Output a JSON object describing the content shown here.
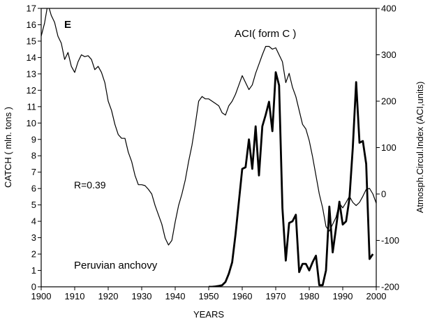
{
  "chart_data": {
    "type": "line",
    "panel_label": "E",
    "xlabel": "YEARS",
    "ylabel_left": "CATCH ( mln. tons )",
    "ylabel_right": "Atmosph.Circul.Index (ACI,units)",
    "xlim": [
      1900,
      2000
    ],
    "ylim_left": [
      0,
      17
    ],
    "ylim_right": [
      -200,
      400
    ],
    "x_ticks": [
      1900,
      1910,
      1920,
      1930,
      1940,
      1950,
      1960,
      1970,
      1980,
      1990,
      2000
    ],
    "y_left_ticks": [
      0,
      1,
      2,
      3,
      4,
      5,
      6,
      7,
      8,
      9,
      10,
      11,
      12,
      13,
      14,
      15,
      16,
      17
    ],
    "y_right_ticks": [
      -200,
      -100,
      0,
      100,
      200,
      300,
      400
    ],
    "grid": false,
    "series": [
      {
        "name": "ACI( form C )",
        "axis": "right",
        "color": "#000000",
        "line_weight": "thin",
        "points": [
          [
            1900,
            340
          ],
          [
            1901,
            368
          ],
          [
            1902,
            410
          ],
          [
            1903,
            385
          ],
          [
            1904,
            370
          ],
          [
            1905,
            340
          ],
          [
            1906,
            325
          ],
          [
            1907,
            290
          ],
          [
            1908,
            305
          ],
          [
            1909,
            275
          ],
          [
            1910,
            262
          ],
          [
            1911,
            285
          ],
          [
            1912,
            300
          ],
          [
            1913,
            296
          ],
          [
            1914,
            298
          ],
          [
            1915,
            290
          ],
          [
            1916,
            268
          ],
          [
            1917,
            275
          ],
          [
            1918,
            262
          ],
          [
            1919,
            240
          ],
          [
            1920,
            200
          ],
          [
            1921,
            180
          ],
          [
            1922,
            150
          ],
          [
            1923,
            128
          ],
          [
            1924,
            120
          ],
          [
            1925,
            120
          ],
          [
            1926,
            90
          ],
          [
            1927,
            70
          ],
          [
            1928,
            40
          ],
          [
            1929,
            20
          ],
          [
            1930,
            20
          ],
          [
            1931,
            18
          ],
          [
            1932,
            10
          ],
          [
            1933,
            0
          ],
          [
            1934,
            -25
          ],
          [
            1935,
            -45
          ],
          [
            1936,
            -65
          ],
          [
            1937,
            -95
          ],
          [
            1938,
            -110
          ],
          [
            1939,
            -100
          ],
          [
            1940,
            -60
          ],
          [
            1941,
            -25
          ],
          [
            1942,
            0
          ],
          [
            1943,
            30
          ],
          [
            1944,
            70
          ],
          [
            1945,
            105
          ],
          [
            1946,
            150
          ],
          [
            1947,
            200
          ],
          [
            1948,
            210
          ],
          [
            1949,
            205
          ],
          [
            1950,
            205
          ],
          [
            1951,
            200
          ],
          [
            1952,
            195
          ],
          [
            1953,
            190
          ],
          [
            1954,
            175
          ],
          [
            1955,
            170
          ],
          [
            1956,
            190
          ],
          [
            1957,
            200
          ],
          [
            1958,
            215
          ],
          [
            1959,
            235
          ],
          [
            1960,
            255
          ],
          [
            1961,
            240
          ],
          [
            1962,
            225
          ],
          [
            1963,
            235
          ],
          [
            1964,
            260
          ],
          [
            1965,
            280
          ],
          [
            1966,
            300
          ],
          [
            1967,
            318
          ],
          [
            1968,
            318
          ],
          [
            1969,
            312
          ],
          [
            1970,
            315
          ],
          [
            1971,
            300
          ],
          [
            1972,
            285
          ],
          [
            1973,
            240
          ],
          [
            1974,
            260
          ],
          [
            1975,
            230
          ],
          [
            1976,
            210
          ],
          [
            1977,
            180
          ],
          [
            1978,
            150
          ],
          [
            1979,
            140
          ],
          [
            1980,
            115
          ],
          [
            1981,
            80
          ],
          [
            1982,
            40
          ],
          [
            1983,
            0
          ],
          [
            1984,
            -30
          ],
          [
            1985,
            -70
          ],
          [
            1986,
            -80
          ],
          [
            1987,
            -65
          ],
          [
            1988,
            -50
          ],
          [
            1989,
            -20
          ],
          [
            1990,
            -30
          ],
          [
            1991,
            -18
          ],
          [
            1992,
            -5
          ],
          [
            1993,
            -18
          ],
          [
            1994,
            -25
          ],
          [
            1995,
            -18
          ],
          [
            1996,
            -5
          ],
          [
            1997,
            10
          ],
          [
            1998,
            12
          ],
          [
            1999,
            0
          ],
          [
            2000,
            -20
          ]
        ]
      },
      {
        "name": "Peruvian anchovy",
        "axis": "left",
        "color": "#000000",
        "line_weight": "bold",
        "points": [
          [
            1950,
            0
          ],
          [
            1951,
            0
          ],
          [
            1952,
            0.02
          ],
          [
            1953,
            0.05
          ],
          [
            1954,
            0.1
          ],
          [
            1955,
            0.3
          ],
          [
            1956,
            0.8
          ],
          [
            1957,
            1.5
          ],
          [
            1958,
            3.2
          ],
          [
            1959,
            5.2
          ],
          [
            1960,
            7.2
          ],
          [
            1961,
            7.3
          ],
          [
            1962,
            9.0
          ],
          [
            1963,
            7.2
          ],
          [
            1964,
            9.8
          ],
          [
            1965,
            6.8
          ],
          [
            1966,
            9.8
          ],
          [
            1967,
            10.5
          ],
          [
            1968,
            11.3
          ],
          [
            1969,
            9.5
          ],
          [
            1970,
            13.1
          ],
          [
            1971,
            12.3
          ],
          [
            1972,
            4.8
          ],
          [
            1973,
            1.6
          ],
          [
            1974,
            3.9
          ],
          [
            1975,
            4.0
          ],
          [
            1976,
            4.4
          ],
          [
            1977,
            0.9
          ],
          [
            1978,
            1.4
          ],
          [
            1979,
            1.4
          ],
          [
            1980,
            1.0
          ],
          [
            1981,
            1.5
          ],
          [
            1982,
            1.9
          ],
          [
            1983,
            0.1
          ],
          [
            1984,
            0.1
          ],
          [
            1985,
            1.0
          ],
          [
            1986,
            4.9
          ],
          [
            1987,
            2.1
          ],
          [
            1988,
            3.6
          ],
          [
            1989,
            5.2
          ],
          [
            1990,
            3.8
          ],
          [
            1991,
            4.0
          ],
          [
            1992,
            5.4
          ],
          [
            1993,
            8.5
          ],
          [
            1994,
            12.5
          ],
          [
            1995,
            8.8
          ],
          [
            1996,
            8.9
          ],
          [
            1997,
            7.5
          ],
          [
            1998,
            1.7
          ],
          [
            1999,
            2.0
          ]
        ]
      }
    ],
    "annotations": {
      "r_value": "R=0.39",
      "aci_label": "ACI( form C )",
      "anchovy_label": "Peruvian anchovy"
    }
  }
}
